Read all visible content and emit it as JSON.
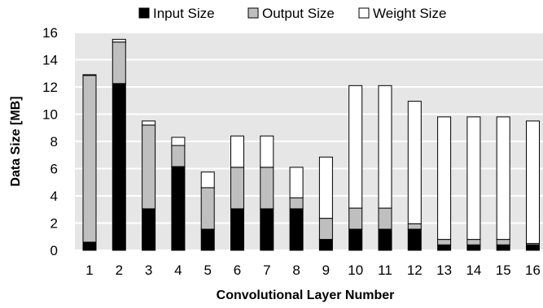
{
  "chart_data": {
    "type": "bar",
    "stacked": true,
    "categories": [
      "1",
      "2",
      "3",
      "4",
      "5",
      "6",
      "7",
      "8",
      "9",
      "10",
      "11",
      "12",
      "13",
      "14",
      "15",
      "16"
    ],
    "series": [
      {
        "name": "Input Size",
        "color": "#000000",
        "values": [
          0.6,
          12.25,
          3.05,
          6.15,
          1.55,
          3.05,
          3.05,
          3.05,
          0.8,
          1.55,
          1.55,
          1.55,
          0.4,
          0.4,
          0.4,
          0.4
        ]
      },
      {
        "name": "Output Size",
        "color": "#bfbfbf",
        "values": [
          12.25,
          3.05,
          6.15,
          1.55,
          3.05,
          3.05,
          3.05,
          0.8,
          1.55,
          1.55,
          1.55,
          0.4,
          0.4,
          0.4,
          0.4,
          0.1
        ]
      },
      {
        "name": "Weight Size",
        "color": "#ffffff",
        "values": [
          0.05,
          0.2,
          0.3,
          0.6,
          1.15,
          2.3,
          2.3,
          2.25,
          4.5,
          9.0,
          9.0,
          9.0,
          9.0,
          9.0,
          9.0,
          9.0
        ]
      }
    ],
    "xlabel": "Convolutional Layer Number",
    "ylabel": "Data Size [MB]",
    "ylim": [
      0,
      16
    ],
    "yticks": [
      0,
      2,
      4,
      6,
      8,
      10,
      12,
      14,
      16
    ],
    "grid": true,
    "legend": "top"
  }
}
